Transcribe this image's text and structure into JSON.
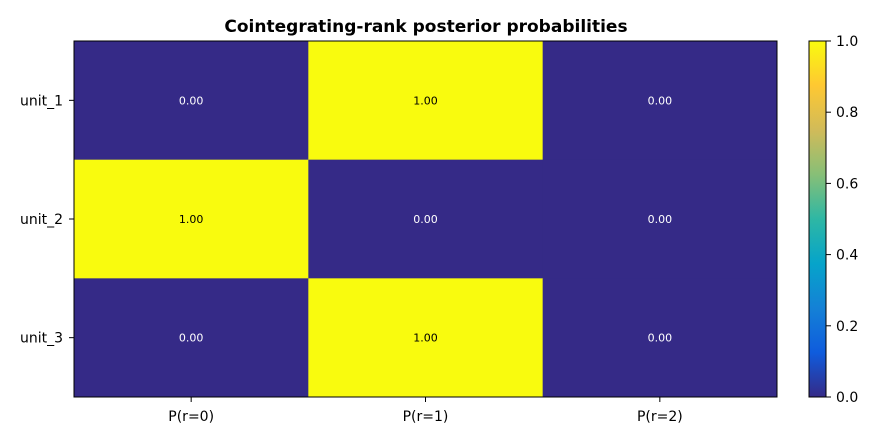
{
  "chart_data": {
    "type": "heatmap",
    "title": "Cointegrating-rank posterior probabilities",
    "rows": [
      "unit_1",
      "unit_2",
      "unit_3"
    ],
    "columns": [
      "P(r=0)",
      "P(r=1)",
      "P(r=2)"
    ],
    "values": [
      [
        0.0,
        1.0,
        0.0
      ],
      [
        1.0,
        0.0,
        0.0
      ],
      [
        0.0,
        1.0,
        0.0
      ]
    ],
    "cell_labels": [
      [
        "0.00",
        "1.00",
        "0.00"
      ],
      [
        "1.00",
        "0.00",
        "0.00"
      ],
      [
        "0.00",
        "1.00",
        "0.00"
      ]
    ],
    "colorbar": {
      "range": [
        0.0,
        1.0
      ],
      "ticks": [
        "0.0",
        "0.2",
        "0.4",
        "0.6",
        "0.8",
        "1.0"
      ],
      "colormap": [
        "#352a87",
        "#0f5cdd",
        "#1481d6",
        "#06a4ca",
        "#2eb7a4",
        "#87bf77",
        "#d1bb59",
        "#fec832",
        "#f9fb0e"
      ]
    }
  }
}
